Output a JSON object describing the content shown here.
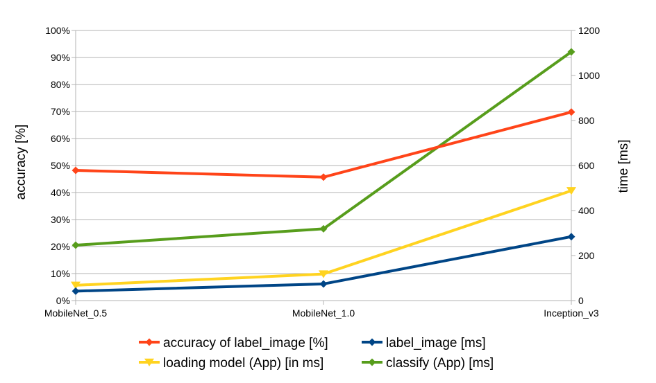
{
  "chart_data": {
    "type": "line",
    "categories": [
      "MobileNet_0.5",
      "MobileNet_1.0",
      "Inception_v3"
    ],
    "y_left": {
      "label": "accuracy [%]",
      "min": 0,
      "max": 100,
      "step": 10,
      "tick_labels": [
        "0%",
        "10%",
        "20%",
        "30%",
        "40%",
        "50%",
        "60%",
        "70%",
        "80%",
        "90%",
        "100%"
      ]
    },
    "y_right": {
      "label": "time [ms]",
      "min": 0,
      "max": 1200,
      "step": 200,
      "tick_labels": [
        "0",
        "200",
        "400",
        "600",
        "800",
        "1000",
        "1200"
      ]
    },
    "grid": true,
    "legend_position": "bottom",
    "series": [
      {
        "name": "accuracy of label_image [%]",
        "axis": "left",
        "color": "#ff4419",
        "marker": "diamond",
        "values": [
          48.2,
          45.7,
          69.8
        ]
      },
      {
        "name": "label_image [ms]",
        "axis": "right",
        "color": "#004586",
        "marker": "diamond",
        "values": [
          42,
          74,
          284
        ]
      },
      {
        "name": "loading model (App) [in ms]",
        "axis": "right",
        "color": "#ffd320",
        "marker": "triangle-down",
        "values": [
          68,
          118,
          488
        ]
      },
      {
        "name": "classify (App) [ms]",
        "axis": "right",
        "color": "#579d1c",
        "marker": "diamond",
        "values": [
          246,
          319,
          1105
        ]
      }
    ]
  }
}
